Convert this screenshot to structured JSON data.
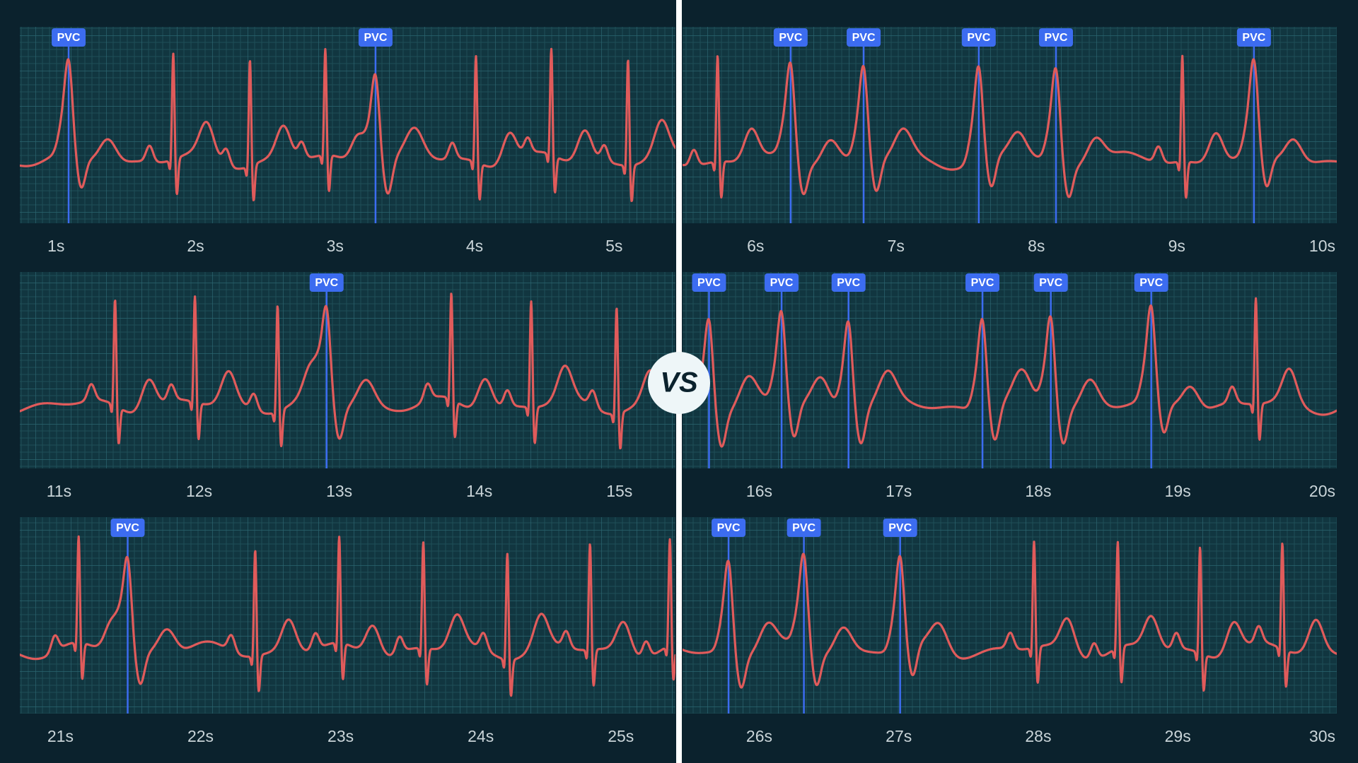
{
  "divider": {
    "label": "VS"
  },
  "chart_data": [
    {
      "type": "ecg",
      "xlim": [
        0.74,
        5.44
      ],
      "xticks": [
        {
          "value": 1,
          "label": "1s"
        },
        {
          "value": 2,
          "label": "2s"
        },
        {
          "value": 3,
          "label": "3s"
        },
        {
          "value": 4,
          "label": "4s"
        },
        {
          "value": 5,
          "label": "5s"
        }
      ],
      "beats": [
        1.84,
        2.39,
        2.93,
        4.01,
        4.55,
        5.1
      ],
      "annotations": [
        {
          "x": 1.09,
          "label": "PVC"
        },
        {
          "x": 3.29,
          "label": "PVC"
        }
      ]
    },
    {
      "type": "ecg",
      "xlim": [
        5.48,
        10.14
      ],
      "xticks": [
        {
          "value": 6,
          "label": "6s"
        },
        {
          "value": 7,
          "label": "7s"
        },
        {
          "value": 8,
          "label": "8s"
        },
        {
          "value": 9,
          "label": "9s"
        },
        {
          "value": 10,
          "label": "10s"
        }
      ],
      "beats": [
        5.73,
        9.04
      ],
      "annotations": [
        {
          "x": 6.25,
          "label": "PVC"
        },
        {
          "x": 6.77,
          "label": "PVC"
        },
        {
          "x": 7.59,
          "label": "PVC"
        },
        {
          "x": 8.14,
          "label": "PVC"
        },
        {
          "x": 9.55,
          "label": "PVC"
        }
      ]
    },
    {
      "type": "ecg",
      "xlim": [
        10.72,
        15.4
      ],
      "xticks": [
        {
          "value": 11,
          "label": "11s"
        },
        {
          "value": 12,
          "label": "12s"
        },
        {
          "value": 13,
          "label": "13s"
        },
        {
          "value": 14,
          "label": "14s"
        },
        {
          "value": 15,
          "label": "15s"
        }
      ],
      "beats": [
        11.4,
        11.97,
        12.56,
        13.8,
        14.37,
        14.98
      ],
      "annotations": [
        {
          "x": 12.91,
          "label": "PVC"
        }
      ]
    },
    {
      "type": "ecg",
      "xlim": [
        15.45,
        20.14
      ],
      "xticks": [
        {
          "value": 16,
          "label": "16s"
        },
        {
          "value": 17,
          "label": "17s"
        },
        {
          "value": 18,
          "label": "18s"
        },
        {
          "value": 19,
          "label": "19s"
        },
        {
          "value": 20,
          "label": "20s"
        }
      ],
      "beats": [
        19.56
      ],
      "annotations": [
        {
          "x": 15.64,
          "label": "PVC"
        },
        {
          "x": 16.16,
          "label": "PVC"
        },
        {
          "x": 16.64,
          "label": "PVC"
        },
        {
          "x": 17.6,
          "label": "PVC"
        },
        {
          "x": 18.09,
          "label": "PVC"
        },
        {
          "x": 18.81,
          "label": "PVC"
        }
      ]
    },
    {
      "type": "ecg",
      "xlim": [
        20.71,
        25.39
      ],
      "xticks": [
        {
          "value": 21,
          "label": "21s"
        },
        {
          "value": 22,
          "label": "22s"
        },
        {
          "value": 23,
          "label": "23s"
        },
        {
          "value": 24,
          "label": "24s"
        },
        {
          "value": 25,
          "label": "25s"
        }
      ],
      "beats": [
        21.13,
        22.39,
        22.99,
        23.59,
        24.19,
        24.78,
        25.35
      ],
      "annotations": [
        {
          "x": 21.48,
          "label": "PVC"
        }
      ]
    },
    {
      "type": "ecg",
      "xlim": [
        25.45,
        30.14
      ],
      "xticks": [
        {
          "value": 26,
          "label": "26s"
        },
        {
          "value": 27,
          "label": "27s"
        },
        {
          "value": 28,
          "label": "28s"
        },
        {
          "value": 29,
          "label": "29s"
        },
        {
          "value": 30,
          "label": "30s"
        }
      ],
      "beats": [
        27.97,
        28.57,
        29.16,
        29.75
      ],
      "annotations": [
        {
          "x": 25.78,
          "label": "PVC"
        },
        {
          "x": 26.32,
          "label": "PVC"
        },
        {
          "x": 27.01,
          "label": "PVC"
        }
      ]
    }
  ]
}
